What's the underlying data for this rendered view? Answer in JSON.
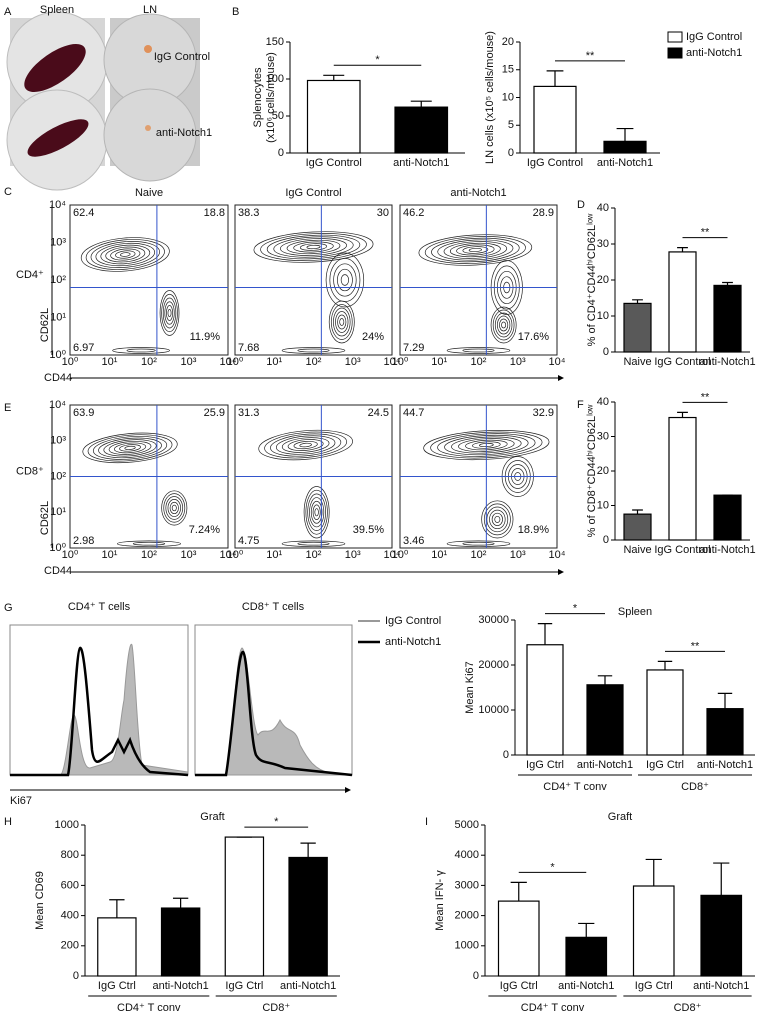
{
  "panels": [
    "A",
    "B",
    "C",
    "D",
    "E",
    "F",
    "G",
    "H",
    "I"
  ],
  "photos": {
    "titles": [
      "Spleen",
      "LN"
    ],
    "labels": [
      "IgG Control",
      "anti-Notch1"
    ]
  },
  "flow": {
    "columns": [
      "Naive",
      "IgG Control",
      "anti-Notch1"
    ],
    "y_label": "CD62L",
    "x_label": "CD44",
    "ticks": [
      "10⁰",
      "10¹",
      "10²",
      "10³",
      "10⁴"
    ],
    "rows": [
      {
        "label": "CD4⁺",
        "quadrants": [
          [
            "62.4",
            "18.8",
            "6.97",
            "11.9%"
          ],
          [
            "38.3",
            "30",
            "7.68",
            "24%"
          ],
          [
            "46.2",
            "28.9",
            "7.29",
            "17.6%"
          ]
        ]
      },
      {
        "label": "CD8⁺",
        "quadrants": [
          [
            "63.9",
            "25.9",
            "2.98",
            "7.24%"
          ],
          [
            "31.3",
            "24.5",
            "4.75",
            "39.5%"
          ],
          [
            "44.7",
            "32.9",
            "3.46",
            "18.9%"
          ]
        ]
      }
    ]
  },
  "histograms": {
    "titles": [
      "CD4⁺ T cells",
      "CD8⁺ T cells"
    ],
    "x_label": "Ki67",
    "legend": [
      "IgG Control",
      "anti-Notch1"
    ]
  },
  "chart_data": [
    {
      "type": "bar",
      "ylabel": [
        "Splenocytes",
        "(x10⁶ cells/mouse)"
      ],
      "categories": [
        "IgG Control",
        "anti-Notch1"
      ],
      "values": [
        98,
        62
      ],
      "errors": [
        7,
        8
      ],
      "colors": [
        "#ffffff",
        "#000000"
      ],
      "ylim": [
        0,
        150
      ],
      "yticks": [
        0,
        50,
        100,
        150
      ],
      "significance": [
        {
          "label": "*",
          "from": 0,
          "to": 1
        }
      ]
    },
    {
      "type": "bar",
      "ylabel": [
        "LN cells (x10⁵ cells/mouse)"
      ],
      "categories": [
        "IgG Control",
        "anti-Notch1"
      ],
      "values": [
        12,
        2.1
      ],
      "errors": [
        2.8,
        2.3
      ],
      "colors": [
        "#ffffff",
        "#000000"
      ],
      "ylim": [
        0,
        20
      ],
      "yticks": [
        0,
        5,
        10,
        15,
        20
      ],
      "significance": [
        {
          "label": "**",
          "from": 0,
          "to": 1
        }
      ],
      "legend": {
        "labels": [
          "IgG Control",
          "anti-Notch1"
        ],
        "colors": [
          "#ffffff",
          "#000000"
        ]
      }
    },
    {
      "type": "bar",
      "ylabel": [
        "% of CD4⁺CD44ʰⁱCD62Lˡᵒʷ"
      ],
      "categories": [
        "Naive",
        "IgG Control",
        "anti-Notch1"
      ],
      "values": [
        13.5,
        27.8,
        18.5
      ],
      "errors": [
        1,
        1.2,
        0.8
      ],
      "colors": [
        "#595959",
        "#ffffff",
        "#000000"
      ],
      "ylim": [
        0,
        40
      ],
      "yticks": [
        0,
        10,
        20,
        30,
        40
      ],
      "significance": [
        {
          "label": "**",
          "from": 1,
          "to": 2
        }
      ]
    },
    {
      "type": "bar",
      "ylabel": [
        "% of CD8⁺CD44ʰⁱCD62Lˡᵒʷ"
      ],
      "categories": [
        "Naive",
        "IgG Control",
        "anti-Notch1"
      ],
      "values": [
        7.5,
        35.5,
        13
      ],
      "errors": [
        1.2,
        1.5,
        0
      ],
      "colors": [
        "#595959",
        "#ffffff",
        "#000000"
      ],
      "ylim": [
        0,
        40
      ],
      "yticks": [
        0,
        10,
        20,
        30,
        40
      ],
      "significance": [
        {
          "label": "**",
          "from": 1,
          "to": 2
        }
      ]
    },
    {
      "type": "bar",
      "title": "Spleen",
      "ylabel": [
        "Mean Ki67"
      ],
      "categories": [
        "IgG Ctrl",
        "anti-Notch1",
        "IgG Ctrl",
        "anti-Notch1"
      ],
      "values": [
        24500,
        15600,
        18900,
        10300
      ],
      "errors": [
        4700,
        2000,
        1900,
        3400
      ],
      "colors": [
        "#ffffff",
        "#000000",
        "#ffffff",
        "#000000"
      ],
      "ylim": [
        0,
        30000
      ],
      "yticks": [
        0,
        10000,
        20000,
        30000
      ],
      "groups": [
        {
          "label": "CD4⁺ T conv",
          "from": 0,
          "to": 1
        },
        {
          "label": "CD8⁺",
          "from": 2,
          "to": 3
        }
      ],
      "significance": [
        {
          "label": "*",
          "from": 0,
          "to": 1
        },
        {
          "label": "**",
          "from": 2,
          "to": 3
        }
      ]
    },
    {
      "type": "bar",
      "title": "Graft",
      "ylabel": [
        "Mean CD69"
      ],
      "categories": [
        "IgG Ctrl",
        "anti-Notch1",
        "IgG Ctrl",
        "anti-Notch1"
      ],
      "values": [
        385,
        450,
        920,
        785
      ],
      "errors": [
        120,
        65,
        0,
        95
      ],
      "colors": [
        "#ffffff",
        "#000000",
        "#ffffff",
        "#000000"
      ],
      "ylim": [
        0,
        1000
      ],
      "yticks": [
        0,
        200,
        400,
        600,
        800,
        1000
      ],
      "groups": [
        {
          "label": "CD4⁺ T conv",
          "from": 0,
          "to": 1
        },
        {
          "label": "CD8⁺",
          "from": 2,
          "to": 3
        }
      ],
      "significance": [
        {
          "label": "*",
          "from": 2,
          "to": 3
        }
      ]
    },
    {
      "type": "bar",
      "title": "Graft",
      "ylabel": [
        "Mean IFN- γ"
      ],
      "categories": [
        "IgG Ctrl",
        "anti-Notch1",
        "IgG Ctrl",
        "anti-Notch1"
      ],
      "values": [
        2480,
        1280,
        2980,
        2670
      ],
      "errors": [
        620,
        460,
        880,
        1070
      ],
      "colors": [
        "#ffffff",
        "#000000",
        "#ffffff",
        "#000000"
      ],
      "ylim": [
        0,
        5000
      ],
      "yticks": [
        0,
        1000,
        2000,
        3000,
        4000,
        5000
      ],
      "groups": [
        {
          "label": "CD4⁺ T conv",
          "from": 0,
          "to": 1
        },
        {
          "label": "CD8⁺",
          "from": 2,
          "to": 3
        }
      ],
      "significance": [
        {
          "label": "*",
          "from": 0,
          "to": 1
        }
      ]
    }
  ]
}
